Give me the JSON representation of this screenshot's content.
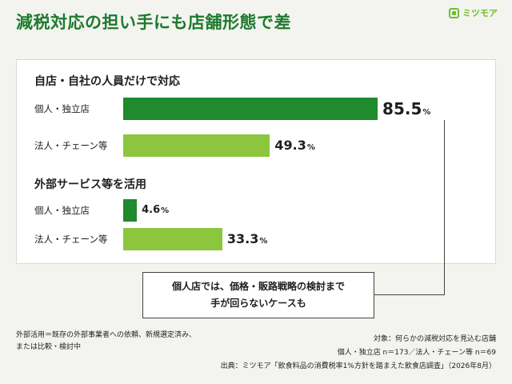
{
  "header": {
    "title": "減税対応の担い手にも店舗形態で差",
    "logo_text": "ミツモア"
  },
  "chart_data": {
    "type": "bar",
    "unit": "%",
    "xlim": [
      0,
      100
    ],
    "colors": {
      "individual": "#1f8a2e",
      "chain": "#8cc63f"
    },
    "groups": [
      {
        "title": "自店・自社の人員だけで対応",
        "rows": [
          {
            "label": "個人・独立店",
            "value": 85.5,
            "series": "individual"
          },
          {
            "label": "法人・チェーン等",
            "value": 49.3,
            "series": "chain"
          }
        ]
      },
      {
        "title": "外部サービス等を活用",
        "rows": [
          {
            "label": "個人・独立店",
            "value": 4.6,
            "series": "individual"
          },
          {
            "label": "法人・チェーン等",
            "value": 33.3,
            "series": "chain"
          }
        ]
      }
    ]
  },
  "callout": {
    "line1": "個人店では、価格・販路戦略の検討まで",
    "line2": "手が回らないケースも"
  },
  "footnote": {
    "line1": "外部活用＝既存の外部事業者への依頼、新規選定済み、",
    "line2": "または比較・検討中"
  },
  "meta": {
    "target": "対象：何らかの減税対応を見込む店舗",
    "sample": "個人・独立店 n＝173／法人・チェーン等 n＝69",
    "source": "出典：ミツモア「飲食料品の消費税率1%方針を踏まえた飲食店調査」（2026年8月）"
  }
}
